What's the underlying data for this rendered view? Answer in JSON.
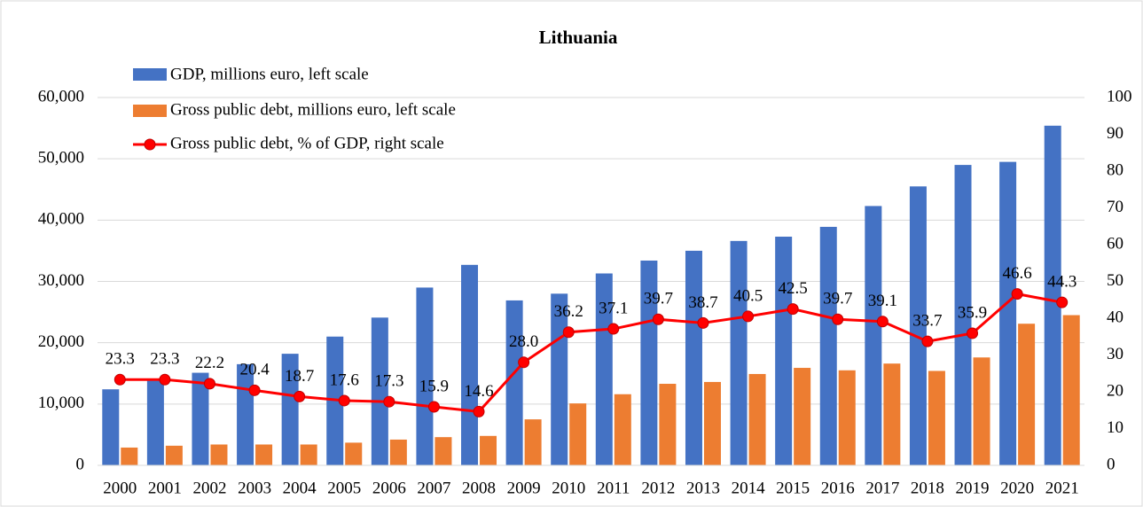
{
  "chart_data": {
    "type": "bar",
    "title": "Lithuania",
    "categories": [
      "2000",
      "2001",
      "2002",
      "2003",
      "2004",
      "2005",
      "2006",
      "2007",
      "2008",
      "2009",
      "2010",
      "2011",
      "2012",
      "2013",
      "2014",
      "2015",
      "2016",
      "2017",
      "2018",
      "2019",
      "2020",
      "2021"
    ],
    "series": [
      {
        "name": "GDP, millions euro, left scale",
        "color": "#4472c4",
        "type": "bar",
        "values": [
          12400,
          13800,
          15100,
          16500,
          18200,
          21000,
          24100,
          29000,
          32700,
          26900,
          28000,
          31300,
          33400,
          35000,
          36600,
          37300,
          38900,
          42300,
          45500,
          49000,
          49500,
          55400
        ]
      },
      {
        "name": "Gross public debt, millions euro, left scale",
        "color": "#ed7d31",
        "type": "bar",
        "values": [
          2900,
          3200,
          3400,
          3400,
          3400,
          3700,
          4200,
          4600,
          4800,
          7500,
          10100,
          11600,
          13300,
          13600,
          14900,
          15900,
          15500,
          16600,
          15400,
          17600,
          23100,
          24500
        ]
      },
      {
        "name": "Gross public debt, % of GDP, right scale",
        "color": "#ff0000",
        "type": "line",
        "axis": "y2",
        "values": [
          23.3,
          23.3,
          22.2,
          20.4,
          18.7,
          17.6,
          17.3,
          15.9,
          14.6,
          28.0,
          36.2,
          37.1,
          39.7,
          38.7,
          40.5,
          42.5,
          39.7,
          39.1,
          33.7,
          35.9,
          46.6,
          44.3
        ],
        "value_labels": [
          "23.3",
          "23.3",
          "22.2",
          "20.4",
          "18.7",
          "17.6",
          "17.3",
          "15.9",
          "14.6",
          "28.0",
          "36.2",
          "37.1",
          "39.7",
          "38.7",
          "40.5",
          "42.5",
          "39.7",
          "39.1",
          "33.7",
          "35.9",
          "46.6",
          "44.3"
        ]
      }
    ],
    "ylim": [
      0,
      60000
    ],
    "yticks": [
      0,
      {
        "value": 10000,
        "label": "10,000"
      },
      {
        "value": 20000,
        "label": "20,000"
      },
      {
        "value": 30000,
        "label": "30,000"
      },
      {
        "value": 40000,
        "label": "40,000"
      },
      {
        "value": 50000,
        "label": "50,000"
      },
      {
        "value": 60000,
        "label": "60,000"
      }
    ],
    "y2lim": [
      0,
      100
    ],
    "y2ticks": [
      0,
      10,
      20,
      30,
      40,
      50,
      60,
      70,
      80,
      90,
      100
    ],
    "grid": true,
    "legend": "upper left"
  }
}
